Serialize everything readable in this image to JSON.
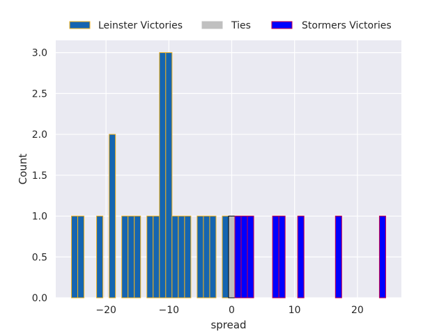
{
  "chart_data": {
    "type": "bar",
    "xlabel": "spread",
    "ylabel": "Count",
    "xlim": [
      -28,
      27
    ],
    "ylim": [
      0,
      3.15
    ],
    "bar_width": 1,
    "xticks": [
      -20,
      -10,
      0,
      10,
      20
    ],
    "xtick_labels": [
      "−20",
      "−10",
      "0",
      "10",
      "20"
    ],
    "yticks": [
      0.0,
      0.5,
      1.0,
      1.5,
      2.0,
      2.5,
      3.0
    ],
    "ytick_labels": [
      "0.0",
      "0.5",
      "1.0",
      "1.5",
      "2.0",
      "2.5",
      "3.0"
    ],
    "grid": true,
    "legend_position": "top-center",
    "series": [
      {
        "name": "Leinster Victories",
        "fill": "#1565b0",
        "edge": "#f2b21b",
        "x": [
          -25,
          -24,
          -21,
          -19,
          -17,
          -16,
          -15,
          -13,
          -12,
          -11,
          -10,
          -9,
          -8,
          -7,
          -5,
          -4,
          -3,
          -1
        ],
        "values": [
          1,
          1,
          1,
          2,
          1,
          1,
          1,
          1,
          1,
          3,
          3,
          1,
          1,
          1,
          1,
          1,
          1,
          1
        ]
      },
      {
        "name": "Ties",
        "fill": "#c0c0c0",
        "edge": "#000000",
        "x": [
          0
        ],
        "values": [
          1
        ]
      },
      {
        "name": "Stormers Victories",
        "fill": "#0000ff",
        "edge": "#cc0044",
        "x": [
          1,
          2,
          3,
          7,
          8,
          11,
          17,
          24
        ],
        "values": [
          1,
          1,
          1,
          1,
          1,
          1,
          1,
          1
        ]
      }
    ]
  }
}
